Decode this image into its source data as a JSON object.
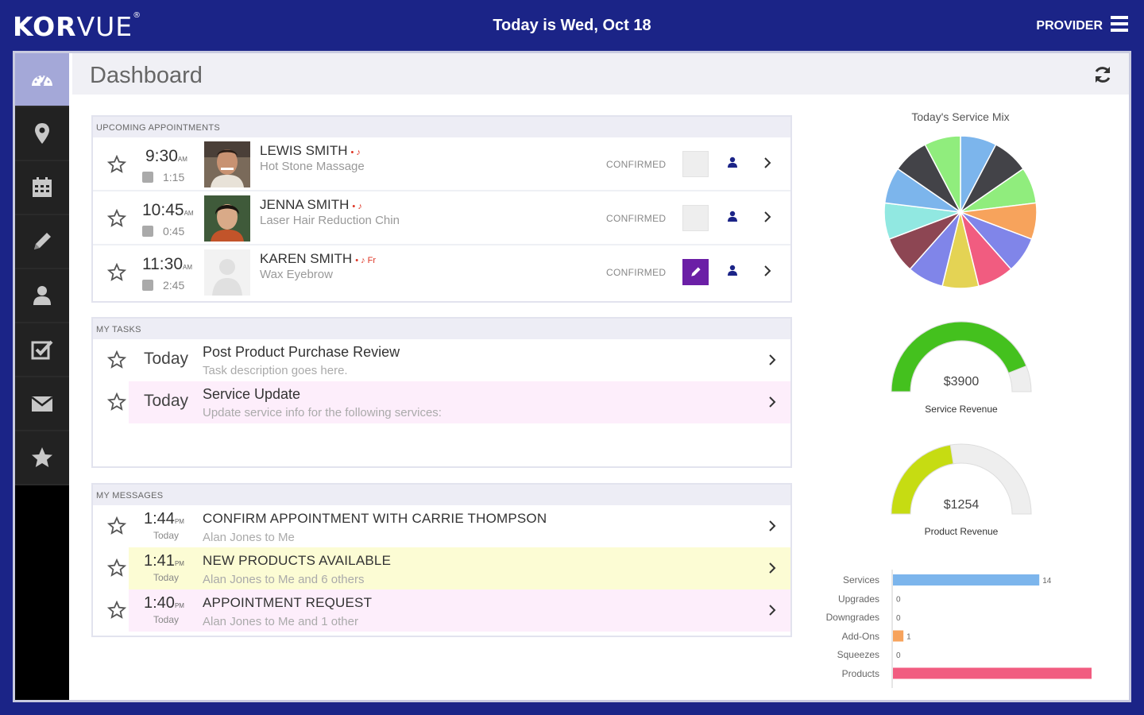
{
  "header": {
    "logo_bold": "KOR",
    "logo_thin": "VUE",
    "logo_mark": "®",
    "date_text": "Today is Wed, Oct 18",
    "role": "PROVIDER"
  },
  "sidebar": {
    "items": [
      {
        "name": "dashboard",
        "icon": "speedometer-icon",
        "active": true
      },
      {
        "name": "locations",
        "icon": "map-pin-icon"
      },
      {
        "name": "calendar",
        "icon": "calendar-icon"
      },
      {
        "name": "notes",
        "icon": "pencil-icon"
      },
      {
        "name": "clients",
        "icon": "person-icon"
      },
      {
        "name": "tasks",
        "icon": "checkbox-icon"
      },
      {
        "name": "messages",
        "icon": "envelope-icon"
      },
      {
        "name": "favorites",
        "icon": "star-icon"
      }
    ]
  },
  "page": {
    "title": "Dashboard"
  },
  "appointments": {
    "heading": "UPCOMING APPOINTMENTS",
    "rows": [
      {
        "time": "9:30",
        "ampm": "AM",
        "duration": "1:15",
        "name": "LEWIS SMITH",
        "flags": "• ♪",
        "service": "Hot Stone Massage",
        "status": "CONFIRMED"
      },
      {
        "time": "10:45",
        "ampm": "AM",
        "duration": "0:45",
        "name": "JENNA SMITH",
        "flags": "• ♪",
        "service": "Laser Hair Reduction Chin",
        "status": "CONFIRMED"
      },
      {
        "time": "11:30",
        "ampm": "AM",
        "duration": "2:45",
        "name": "KAREN SMITH",
        "flags": "• ♪ Fr",
        "service": "Wax Eyebrow",
        "status": "CONFIRMED"
      }
    ]
  },
  "tasks": {
    "heading": "MY TASKS",
    "rows": [
      {
        "day": "Today",
        "title": "Post Product Purchase Review",
        "desc": "Task description goes here."
      },
      {
        "day": "Today",
        "title": "Service Update",
        "desc": "Update service info for the following services:"
      }
    ]
  },
  "messages": {
    "heading": "MY MESSAGES",
    "rows": [
      {
        "time": "1:44",
        "ampm": "PM",
        "day": "Today",
        "title": "CONFIRM APPOINTMENT WITH CARRIE THOMPSON",
        "desc": "Alan Jones to Me"
      },
      {
        "time": "1:41",
        "ampm": "PM",
        "day": "Today",
        "title": "NEW PRODUCTS AVAILABLE",
        "desc": "Alan Jones to Me and 6 others"
      },
      {
        "time": "1:40",
        "ampm": "PM",
        "day": "Today",
        "title": "APPOINTMENT REQUEST",
        "desc": "Alan Jones to Me and 1 other"
      }
    ]
  },
  "service_mix": {
    "title": "Today's Service Mix",
    "slice_colors": [
      "#7cb5ec",
      "#434348",
      "#90ed7d",
      "#f7a35c",
      "#8085e9",
      "#f15c80",
      "#e4d354",
      "#8085e9",
      "#8d4653",
      "#91e8e1",
      "#7cb5ec",
      "#434348",
      "#90ed7d"
    ]
  },
  "gauges": [
    {
      "value_text": "$3900",
      "label": "Service Revenue",
      "fraction": 0.88,
      "color": "#44c11e"
    },
    {
      "value_text": "$1254",
      "label": "Product Revenue",
      "fraction": 0.45,
      "color": "#c6dc12"
    }
  ],
  "chart_data": {
    "type": "bar",
    "orientation": "horizontal",
    "categories": [
      "Services",
      "Upgrades",
      "Downgrades",
      "Add-Ons",
      "Squeezes",
      "Products"
    ],
    "values": [
      14,
      0,
      0,
      1,
      0,
      19
    ],
    "value_labels": [
      "14",
      "0",
      "0",
      "1",
      "0",
      ""
    ],
    "colors": [
      "#7cb5ec",
      "#7cb5ec",
      "#7cb5ec",
      "#f7a35c",
      "#7cb5ec",
      "#f15c80"
    ]
  }
}
